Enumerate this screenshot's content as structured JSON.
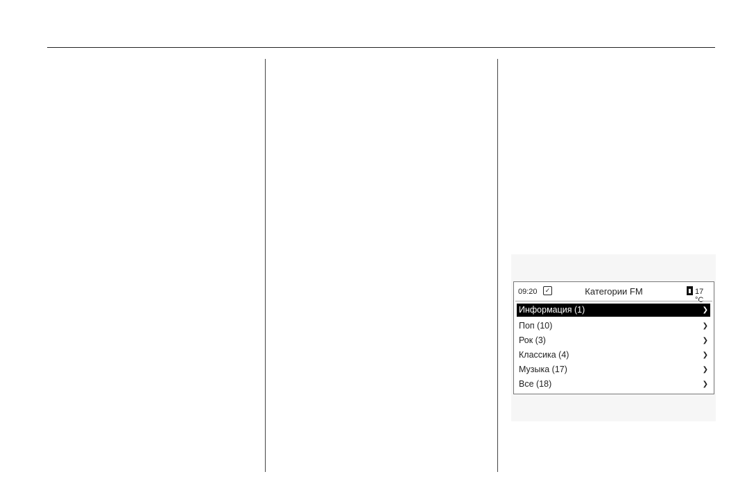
{
  "screen": {
    "time": "09:20",
    "title": "Категории FM",
    "temperature": "17 °C",
    "items": [
      {
        "label": "Информация (1)",
        "selected": true
      },
      {
        "label": "Поп (10)"
      },
      {
        "label": "Рок (3)"
      },
      {
        "label": "Классика (4)"
      },
      {
        "label": "Музыка (17)"
      },
      {
        "label": "Все (18)"
      }
    ]
  },
  "icons": {
    "clock": "clock-check-icon",
    "thermometer": "thermometer-icon",
    "arrow": "chevron-right-icon"
  }
}
